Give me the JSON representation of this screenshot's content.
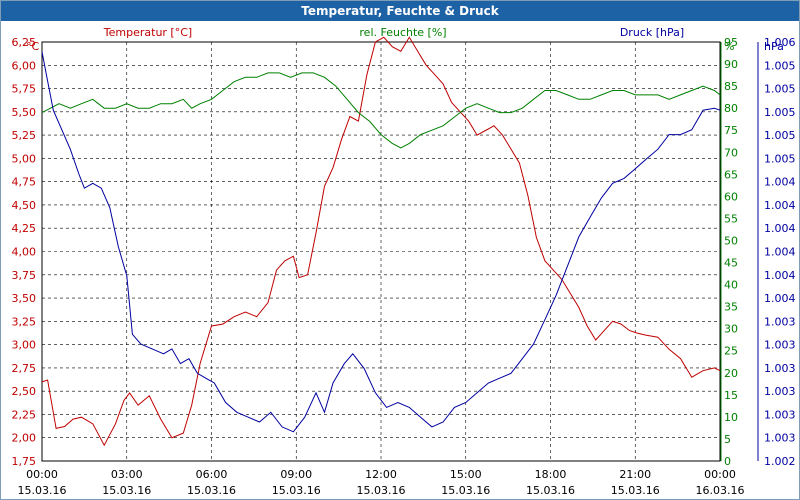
{
  "window": {
    "title": "Temperatur, Feuchte & Druck"
  },
  "legend": {
    "temp": "Temperatur [°C]",
    "hum": "rel. Feuchte [%]",
    "press": "Druck [hPa]"
  },
  "axes": {
    "temp_unit": "°C",
    "hum_unit": "%",
    "press_unit": "hPa"
  },
  "chart_data": {
    "type": "line",
    "title": "Temperatur, Feuchte & Druck",
    "x_unit": "hours since 15.03.16 00:00",
    "x_range": [
      0,
      24
    ],
    "x_ticks": [
      {
        "time": "00:00",
        "date": "15.03.16"
      },
      {
        "time": "03:00",
        "date": "15.03.16"
      },
      {
        "time": "06:00",
        "date": "15.03.16"
      },
      {
        "time": "09:00",
        "date": "15.03.16"
      },
      {
        "time": "12:00",
        "date": "15.03.16"
      },
      {
        "time": "15:00",
        "date": "15.03.16"
      },
      {
        "time": "18:00",
        "date": "15.03.16"
      },
      {
        "time": "21:00",
        "date": "15.03.16"
      },
      {
        "time": "00:00",
        "date": "16.03.16"
      }
    ],
    "grid": true,
    "legend_position": "top",
    "y_left": {
      "label": "°C",
      "range": [
        1.75,
        6.25
      ],
      "ticks": [
        "1,75",
        "2,00",
        "2,25",
        "2,50",
        "2,75",
        "3,00",
        "3,25",
        "3,50",
        "3,75",
        "4,00",
        "4,25",
        "4,50",
        "4,75",
        "5,00",
        "5,25",
        "5,50",
        "5,75",
        "6,00",
        "6,25"
      ],
      "color": "#c00000"
    },
    "y_mid": {
      "label": "%",
      "range": [
        0,
        95
      ],
      "ticks": [
        "0",
        "5",
        "10",
        "15",
        "20",
        "25",
        "30",
        "35",
        "40",
        "45",
        "50",
        "55",
        "60",
        "65",
        "70",
        "75",
        "80",
        "85",
        "90",
        "95"
      ],
      "color": "#008000"
    },
    "y_right": {
      "label": "hPa",
      "range": [
        1002.0,
        1006.3
      ],
      "ticks": [
        "1.002",
        "1.003",
        "1.003",
        "1.003",
        "1.003",
        "1.003",
        "1.003",
        "1.004",
        "1.004",
        "1.004",
        "1.004",
        "1.004",
        "1.004",
        "1.005",
        "1.005",
        "1.005",
        "1.005",
        "1.005",
        "1.006"
      ],
      "color": "#0000a0"
    },
    "series": [
      {
        "name": "Temperatur [°C]",
        "axis": "left",
        "color": "#c00000",
        "points": [
          [
            0.0,
            2.6
          ],
          [
            0.2,
            2.62
          ],
          [
            0.5,
            2.1
          ],
          [
            0.8,
            2.12
          ],
          [
            1.1,
            2.2
          ],
          [
            1.4,
            2.22
          ],
          [
            1.8,
            2.15
          ],
          [
            2.2,
            1.92
          ],
          [
            2.6,
            2.15
          ],
          [
            2.9,
            2.4
          ],
          [
            3.1,
            2.48
          ],
          [
            3.4,
            2.35
          ],
          [
            3.8,
            2.45
          ],
          [
            4.2,
            2.2
          ],
          [
            4.6,
            2.0
          ],
          [
            5.0,
            2.05
          ],
          [
            5.3,
            2.35
          ],
          [
            5.6,
            2.8
          ],
          [
            6.0,
            3.2
          ],
          [
            6.4,
            3.22
          ],
          [
            6.8,
            3.3
          ],
          [
            7.2,
            3.35
          ],
          [
            7.6,
            3.3
          ],
          [
            8.0,
            3.45
          ],
          [
            8.3,
            3.8
          ],
          [
            8.6,
            3.9
          ],
          [
            8.9,
            3.95
          ],
          [
            9.1,
            3.72
          ],
          [
            9.4,
            3.75
          ],
          [
            9.7,
            4.2
          ],
          [
            10.0,
            4.7
          ],
          [
            10.3,
            4.9
          ],
          [
            10.6,
            5.2
          ],
          [
            10.9,
            5.45
          ],
          [
            11.2,
            5.4
          ],
          [
            11.5,
            5.9
          ],
          [
            11.8,
            6.25
          ],
          [
            12.1,
            6.3
          ],
          [
            12.4,
            6.2
          ],
          [
            12.7,
            6.15
          ],
          [
            13.0,
            6.3
          ],
          [
            13.3,
            6.15
          ],
          [
            13.6,
            6.0
          ],
          [
            13.9,
            5.9
          ],
          [
            14.2,
            5.8
          ],
          [
            14.5,
            5.6
          ],
          [
            14.8,
            5.5
          ],
          [
            15.1,
            5.4
          ],
          [
            15.4,
            5.25
          ],
          [
            15.7,
            5.3
          ],
          [
            16.0,
            5.35
          ],
          [
            16.3,
            5.25
          ],
          [
            16.6,
            5.1
          ],
          [
            16.9,
            4.95
          ],
          [
            17.2,
            4.6
          ],
          [
            17.5,
            4.15
          ],
          [
            17.8,
            3.9
          ],
          [
            18.1,
            3.8
          ],
          [
            18.4,
            3.7
          ],
          [
            18.7,
            3.55
          ],
          [
            19.0,
            3.4
          ],
          [
            19.3,
            3.2
          ],
          [
            19.6,
            3.05
          ],
          [
            19.9,
            3.15
          ],
          [
            20.2,
            3.25
          ],
          [
            20.5,
            3.22
          ],
          [
            20.8,
            3.15
          ],
          [
            21.1,
            3.12
          ],
          [
            21.4,
            3.1
          ],
          [
            21.8,
            3.08
          ],
          [
            22.2,
            2.95
          ],
          [
            22.6,
            2.85
          ],
          [
            23.0,
            2.65
          ],
          [
            23.4,
            2.72
          ],
          [
            23.8,
            2.75
          ],
          [
            24.0,
            2.72
          ]
        ]
      },
      {
        "name": "rel. Feuchte [%]",
        "axis": "mid",
        "color": "#008000",
        "points": [
          [
            0.0,
            79
          ],
          [
            0.3,
            80
          ],
          [
            0.6,
            81
          ],
          [
            1.0,
            80
          ],
          [
            1.4,
            81
          ],
          [
            1.8,
            82
          ],
          [
            2.2,
            80
          ],
          [
            2.6,
            80
          ],
          [
            3.0,
            81
          ],
          [
            3.4,
            80
          ],
          [
            3.8,
            80
          ],
          [
            4.2,
            81
          ],
          [
            4.6,
            81
          ],
          [
            5.0,
            82
          ],
          [
            5.3,
            80
          ],
          [
            5.6,
            81
          ],
          [
            6.0,
            82
          ],
          [
            6.4,
            84
          ],
          [
            6.8,
            86
          ],
          [
            7.2,
            87
          ],
          [
            7.6,
            87
          ],
          [
            8.0,
            88
          ],
          [
            8.4,
            88
          ],
          [
            8.8,
            87
          ],
          [
            9.2,
            88
          ],
          [
            9.6,
            88
          ],
          [
            10.0,
            87
          ],
          [
            10.4,
            85
          ],
          [
            10.8,
            82
          ],
          [
            11.2,
            79
          ],
          [
            11.6,
            77
          ],
          [
            12.0,
            74
          ],
          [
            12.4,
            72
          ],
          [
            12.7,
            71
          ],
          [
            13.0,
            72
          ],
          [
            13.4,
            74
          ],
          [
            13.8,
            75
          ],
          [
            14.2,
            76
          ],
          [
            14.6,
            78
          ],
          [
            15.0,
            80
          ],
          [
            15.4,
            81
          ],
          [
            15.8,
            80
          ],
          [
            16.2,
            79
          ],
          [
            16.6,
            79
          ],
          [
            17.0,
            80
          ],
          [
            17.4,
            82
          ],
          [
            17.8,
            84
          ],
          [
            18.2,
            84
          ],
          [
            18.6,
            83
          ],
          [
            19.0,
            82
          ],
          [
            19.4,
            82
          ],
          [
            19.8,
            83
          ],
          [
            20.2,
            84
          ],
          [
            20.6,
            84
          ],
          [
            21.0,
            83
          ],
          [
            21.4,
            83
          ],
          [
            21.8,
            83
          ],
          [
            22.2,
            82
          ],
          [
            22.6,
            83
          ],
          [
            23.0,
            84
          ],
          [
            23.4,
            85
          ],
          [
            23.8,
            84
          ],
          [
            24.0,
            83
          ]
        ]
      },
      {
        "name": "Druck [hPa]",
        "axis": "right",
        "color": "#0000a0",
        "points": [
          [
            0.0,
            1006.2
          ],
          [
            0.2,
            1005.9
          ],
          [
            0.4,
            1005.6
          ],
          [
            0.7,
            1005.4
          ],
          [
            1.0,
            1005.2
          ],
          [
            1.3,
            1004.95
          ],
          [
            1.5,
            1004.8
          ],
          [
            1.8,
            1004.85
          ],
          [
            2.1,
            1004.8
          ],
          [
            2.4,
            1004.6
          ],
          [
            2.7,
            1004.2
          ],
          [
            3.0,
            1003.9
          ],
          [
            3.2,
            1003.3
          ],
          [
            3.5,
            1003.2
          ],
          [
            3.9,
            1003.15
          ],
          [
            4.3,
            1003.1
          ],
          [
            4.6,
            1003.15
          ],
          [
            4.9,
            1003.0
          ],
          [
            5.2,
            1003.05
          ],
          [
            5.5,
            1002.9
          ],
          [
            5.8,
            1002.85
          ],
          [
            6.1,
            1002.8
          ],
          [
            6.5,
            1002.6
          ],
          [
            6.9,
            1002.5
          ],
          [
            7.3,
            1002.45
          ],
          [
            7.7,
            1002.4
          ],
          [
            8.1,
            1002.5
          ],
          [
            8.5,
            1002.35
          ],
          [
            8.9,
            1002.3
          ],
          [
            9.3,
            1002.45
          ],
          [
            9.7,
            1002.7
          ],
          [
            10.0,
            1002.5
          ],
          [
            10.3,
            1002.8
          ],
          [
            10.7,
            1003.0
          ],
          [
            11.0,
            1003.1
          ],
          [
            11.4,
            1002.95
          ],
          [
            11.8,
            1002.7
          ],
          [
            12.2,
            1002.55
          ],
          [
            12.6,
            1002.6
          ],
          [
            13.0,
            1002.55
          ],
          [
            13.4,
            1002.45
          ],
          [
            13.8,
            1002.35
          ],
          [
            14.2,
            1002.4
          ],
          [
            14.6,
            1002.55
          ],
          [
            15.0,
            1002.6
          ],
          [
            15.4,
            1002.7
          ],
          [
            15.8,
            1002.8
          ],
          [
            16.2,
            1002.85
          ],
          [
            16.6,
            1002.9
          ],
          [
            17.0,
            1003.05
          ],
          [
            17.4,
            1003.2
          ],
          [
            17.8,
            1003.45
          ],
          [
            18.2,
            1003.7
          ],
          [
            18.6,
            1004.0
          ],
          [
            19.0,
            1004.3
          ],
          [
            19.4,
            1004.5
          ],
          [
            19.8,
            1004.7
          ],
          [
            20.2,
            1004.85
          ],
          [
            20.6,
            1004.9
          ],
          [
            21.0,
            1005.0
          ],
          [
            21.4,
            1005.1
          ],
          [
            21.8,
            1005.2
          ],
          [
            22.2,
            1005.35
          ],
          [
            22.6,
            1005.35
          ],
          [
            23.0,
            1005.4
          ],
          [
            23.4,
            1005.6
          ],
          [
            23.8,
            1005.62
          ],
          [
            24.0,
            1005.6
          ]
        ]
      }
    ]
  }
}
